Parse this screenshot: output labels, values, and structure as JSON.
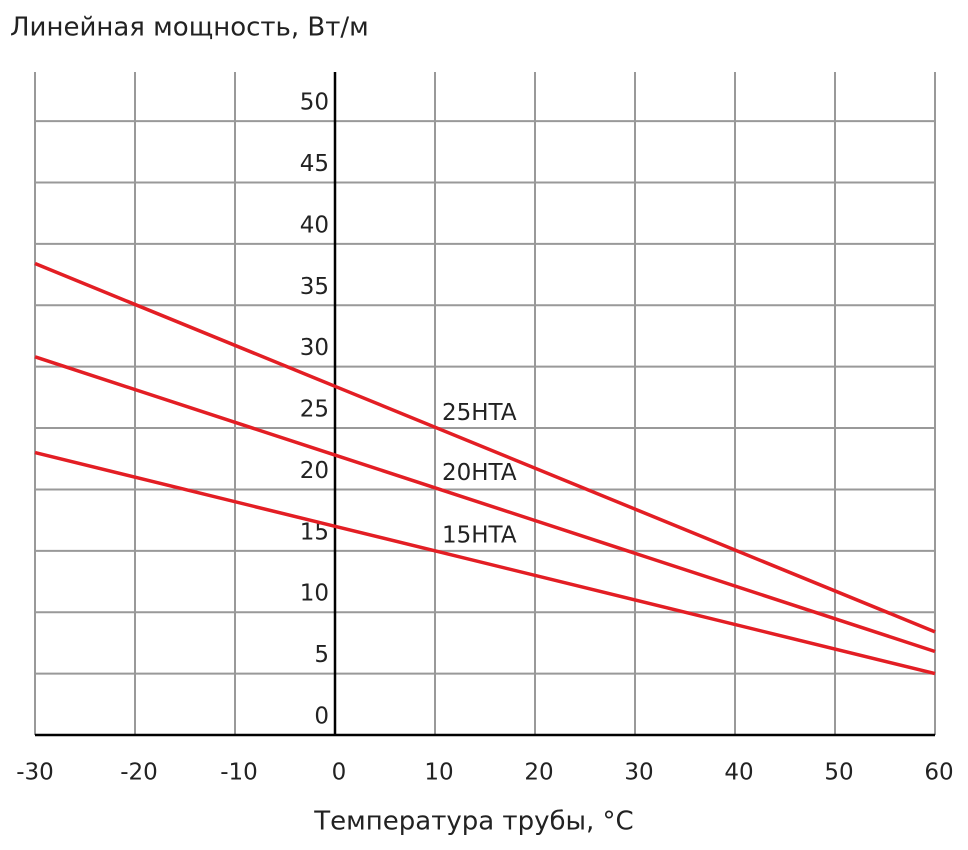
{
  "chart_data": {
    "type": "line",
    "title": "Линейная мощность, Вт/м",
    "x_label": "Температура трубы, °C",
    "series": [
      {
        "name": "25HTA",
        "color": "#e31e24",
        "x": [
          -30,
          0,
          60
        ],
        "values": [
          38.4,
          28.4,
          8.4
        ]
      },
      {
        "name": "20HTA",
        "color": "#e31e24",
        "x": [
          -30,
          0,
          60
        ],
        "values": [
          30.8,
          22.8,
          6.8
        ]
      },
      {
        "name": "15HTA",
        "color": "#e31e24",
        "x": [
          -30,
          0,
          60
        ],
        "values": [
          23.0,
          17.0,
          5.0
        ]
      }
    ],
    "xlim": [
      -30,
      60
    ],
    "xticks": [
      -30,
      -20,
      -10,
      0,
      10,
      20,
      30,
      40,
      50,
      60
    ],
    "ylim": [
      0,
      54
    ],
    "yticks": [
      0,
      5,
      10,
      15,
      20,
      25,
      30,
      35,
      40,
      45,
      50
    ],
    "grid": true
  }
}
